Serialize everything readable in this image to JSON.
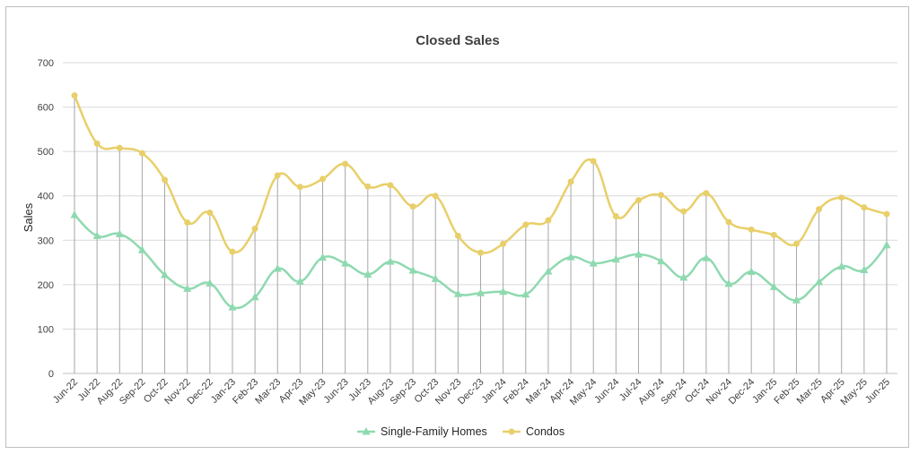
{
  "chart_data": {
    "type": "line",
    "title": "Closed Sales",
    "ylabel": "Sales",
    "xlabel": "",
    "ylim": [
      0,
      700
    ],
    "yticks": [
      0,
      100,
      200,
      300,
      400,
      500,
      600,
      700
    ],
    "grid": "horizontal",
    "legend_position": "bottom",
    "categories": [
      "Jun-22",
      "Jul-22",
      "Aug-22",
      "Sep-22",
      "Oct-22",
      "Nov-22",
      "Dec-22",
      "Jan-23",
      "Feb-23",
      "Mar-23",
      "Apr-23",
      "May-23",
      "Jun-23",
      "Jul-23",
      "Aug-23",
      "Sep-23",
      "Oct-23",
      "Nov-23",
      "Dec-23",
      "Jan-24",
      "Feb-24",
      "Mar-24",
      "Apr-24",
      "May-24",
      "Jun-24",
      "Jul-24",
      "Aug-24",
      "Sep-24",
      "Oct-24",
      "Nov-24",
      "Dec-24",
      "Jan-25",
      "Feb-25",
      "Mar-25",
      "Apr-25",
      "May-25",
      "Jun-25"
    ],
    "series": [
      {
        "name": "Single-Family Homes",
        "color": "#8fd9b0",
        "marker": "triangle",
        "values": [
          357,
          310,
          314,
          278,
          222,
          191,
          203,
          149,
          172,
          236,
          207,
          261,
          248,
          223,
          252,
          232,
          213,
          179,
          181,
          184,
          178,
          230,
          262,
          248,
          257,
          268,
          253,
          216,
          260,
          202,
          229,
          195,
          165,
          206,
          241,
          233,
          289
        ]
      },
      {
        "name": "Condos",
        "color": "#e8cf6a",
        "marker": "circle",
        "values": [
          626,
          518,
          508,
          496,
          436,
          340,
          362,
          274,
          326,
          446,
          420,
          438,
          472,
          421,
          424,
          376,
          400,
          310,
          272,
          292,
          335,
          345,
          432,
          478,
          354,
          390,
          402,
          365,
          406,
          341,
          324,
          312,
          292,
          370,
          396,
          374,
          359
        ]
      }
    ]
  }
}
